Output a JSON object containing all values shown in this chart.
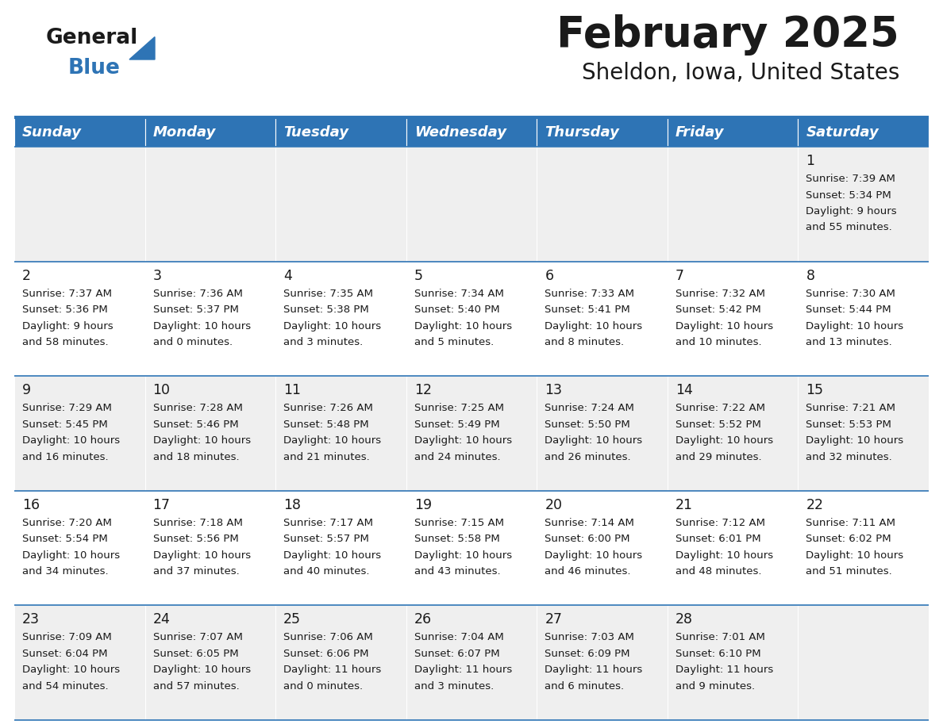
{
  "title": "February 2025",
  "subtitle": "Sheldon, Iowa, United States",
  "header_bg": "#2E74B5",
  "header_text_color": "#FFFFFF",
  "cell_bg_white": "#FFFFFF",
  "cell_bg_gray": "#EFEFEF",
  "border_color": "#2E74B5",
  "day_names": [
    "Sunday",
    "Monday",
    "Tuesday",
    "Wednesday",
    "Thursday",
    "Friday",
    "Saturday"
  ],
  "title_color": "#1A1A1A",
  "subtitle_color": "#1A1A1A",
  "day_number_color": "#1A1A1A",
  "cell_text_color": "#1A1A1A",
  "logo_text_color": "#1A1A1A",
  "logo_blue_color": "#2E74B5",
  "calendar_data": [
    [
      null,
      null,
      null,
      null,
      null,
      null,
      {
        "day": 1,
        "sunrise": "7:39 AM",
        "sunset": "5:34 PM",
        "daylight_h": "9 hours",
        "daylight_m": "and 55 minutes."
      }
    ],
    [
      {
        "day": 2,
        "sunrise": "7:37 AM",
        "sunset": "5:36 PM",
        "daylight_h": "9 hours",
        "daylight_m": "and 58 minutes."
      },
      {
        "day": 3,
        "sunrise": "7:36 AM",
        "sunset": "5:37 PM",
        "daylight_h": "10 hours",
        "daylight_m": "and 0 minutes."
      },
      {
        "day": 4,
        "sunrise": "7:35 AM",
        "sunset": "5:38 PM",
        "daylight_h": "10 hours",
        "daylight_m": "and 3 minutes."
      },
      {
        "day": 5,
        "sunrise": "7:34 AM",
        "sunset": "5:40 PM",
        "daylight_h": "10 hours",
        "daylight_m": "and 5 minutes."
      },
      {
        "day": 6,
        "sunrise": "7:33 AM",
        "sunset": "5:41 PM",
        "daylight_h": "10 hours",
        "daylight_m": "and 8 minutes."
      },
      {
        "day": 7,
        "sunrise": "7:32 AM",
        "sunset": "5:42 PM",
        "daylight_h": "10 hours",
        "daylight_m": "and 10 minutes."
      },
      {
        "day": 8,
        "sunrise": "7:30 AM",
        "sunset": "5:44 PM",
        "daylight_h": "10 hours",
        "daylight_m": "and 13 minutes."
      }
    ],
    [
      {
        "day": 9,
        "sunrise": "7:29 AM",
        "sunset": "5:45 PM",
        "daylight_h": "10 hours",
        "daylight_m": "and 16 minutes."
      },
      {
        "day": 10,
        "sunrise": "7:28 AM",
        "sunset": "5:46 PM",
        "daylight_h": "10 hours",
        "daylight_m": "and 18 minutes."
      },
      {
        "day": 11,
        "sunrise": "7:26 AM",
        "sunset": "5:48 PM",
        "daylight_h": "10 hours",
        "daylight_m": "and 21 minutes."
      },
      {
        "day": 12,
        "sunrise": "7:25 AM",
        "sunset": "5:49 PM",
        "daylight_h": "10 hours",
        "daylight_m": "and 24 minutes."
      },
      {
        "day": 13,
        "sunrise": "7:24 AM",
        "sunset": "5:50 PM",
        "daylight_h": "10 hours",
        "daylight_m": "and 26 minutes."
      },
      {
        "day": 14,
        "sunrise": "7:22 AM",
        "sunset": "5:52 PM",
        "daylight_h": "10 hours",
        "daylight_m": "and 29 minutes."
      },
      {
        "day": 15,
        "sunrise": "7:21 AM",
        "sunset": "5:53 PM",
        "daylight_h": "10 hours",
        "daylight_m": "and 32 minutes."
      }
    ],
    [
      {
        "day": 16,
        "sunrise": "7:20 AM",
        "sunset": "5:54 PM",
        "daylight_h": "10 hours",
        "daylight_m": "and 34 minutes."
      },
      {
        "day": 17,
        "sunrise": "7:18 AM",
        "sunset": "5:56 PM",
        "daylight_h": "10 hours",
        "daylight_m": "and 37 minutes."
      },
      {
        "day": 18,
        "sunrise": "7:17 AM",
        "sunset": "5:57 PM",
        "daylight_h": "10 hours",
        "daylight_m": "and 40 minutes."
      },
      {
        "day": 19,
        "sunrise": "7:15 AM",
        "sunset": "5:58 PM",
        "daylight_h": "10 hours",
        "daylight_m": "and 43 minutes."
      },
      {
        "day": 20,
        "sunrise": "7:14 AM",
        "sunset": "6:00 PM",
        "daylight_h": "10 hours",
        "daylight_m": "and 46 minutes."
      },
      {
        "day": 21,
        "sunrise": "7:12 AM",
        "sunset": "6:01 PM",
        "daylight_h": "10 hours",
        "daylight_m": "and 48 minutes."
      },
      {
        "day": 22,
        "sunrise": "7:11 AM",
        "sunset": "6:02 PM",
        "daylight_h": "10 hours",
        "daylight_m": "and 51 minutes."
      }
    ],
    [
      {
        "day": 23,
        "sunrise": "7:09 AM",
        "sunset": "6:04 PM",
        "daylight_h": "10 hours",
        "daylight_m": "and 54 minutes."
      },
      {
        "day": 24,
        "sunrise": "7:07 AM",
        "sunset": "6:05 PM",
        "daylight_h": "10 hours",
        "daylight_m": "and 57 minutes."
      },
      {
        "day": 25,
        "sunrise": "7:06 AM",
        "sunset": "6:06 PM",
        "daylight_h": "11 hours",
        "daylight_m": "and 0 minutes."
      },
      {
        "day": 26,
        "sunrise": "7:04 AM",
        "sunset": "6:07 PM",
        "daylight_h": "11 hours",
        "daylight_m": "and 3 minutes."
      },
      {
        "day": 27,
        "sunrise": "7:03 AM",
        "sunset": "6:09 PM",
        "daylight_h": "11 hours",
        "daylight_m": "and 6 minutes."
      },
      {
        "day": 28,
        "sunrise": "7:01 AM",
        "sunset": "6:10 PM",
        "daylight_h": "11 hours",
        "daylight_m": "and 9 minutes."
      },
      null
    ]
  ]
}
